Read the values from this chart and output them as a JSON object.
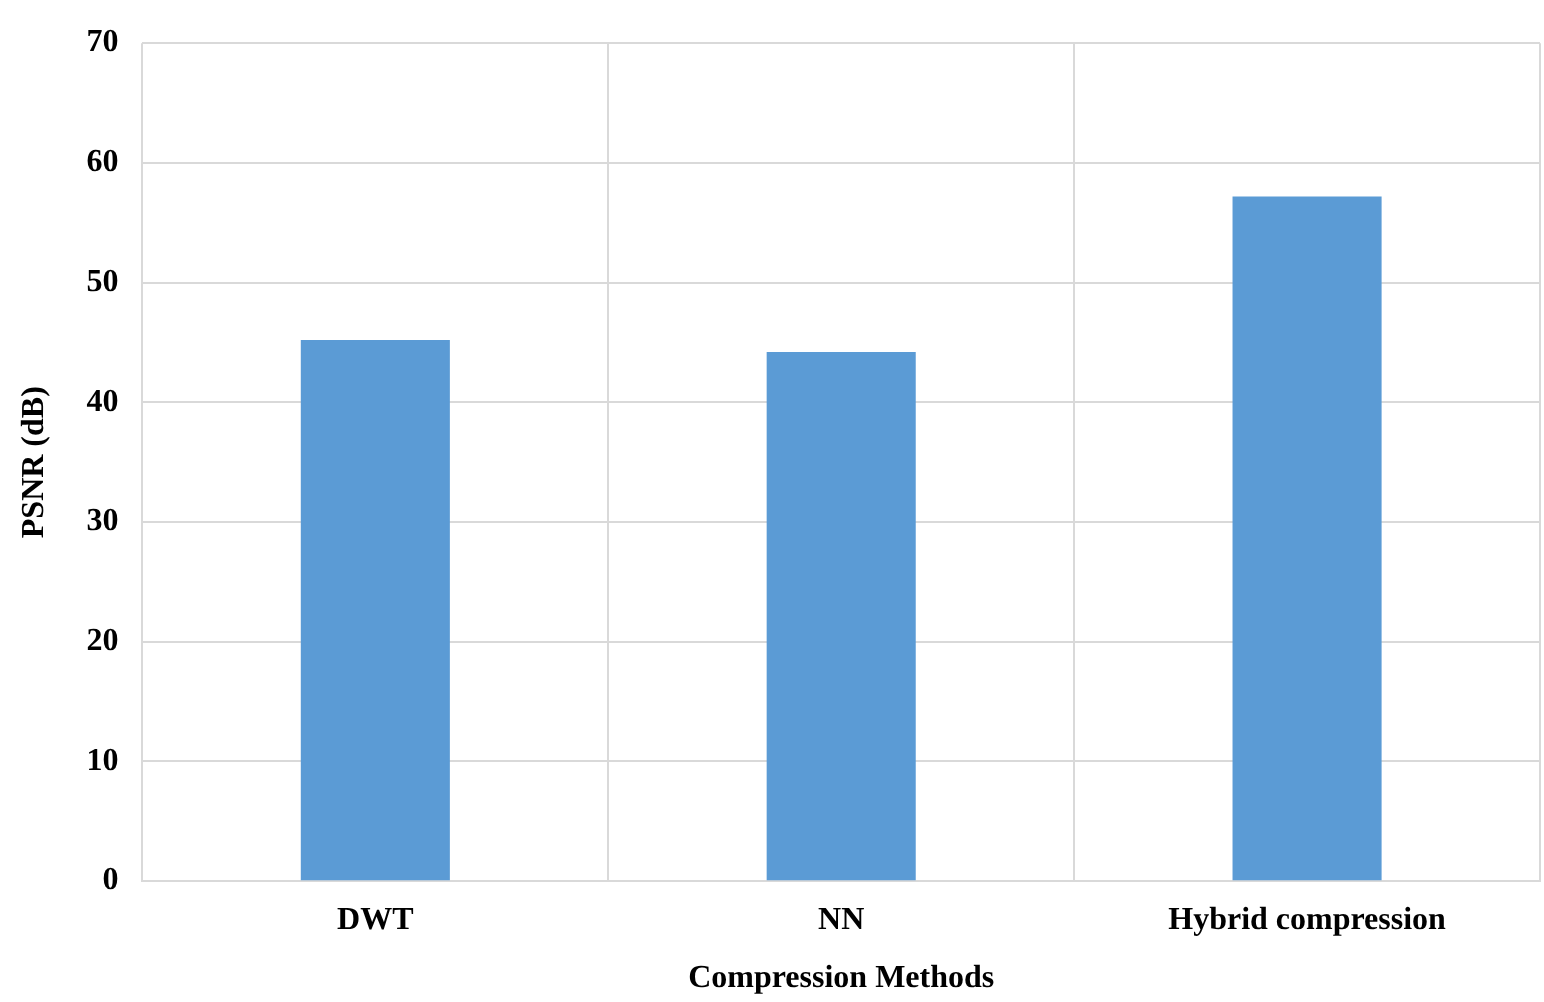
{
  "chart_data": {
    "type": "bar",
    "xlabel": "Compression Methods",
    "ylabel": "PSNR (dB)",
    "categories": [
      "DWT",
      "NN",
      "Hybrid compression"
    ],
    "values": [
      45.2,
      44.2,
      57.2
    ],
    "color": "#5b9bd5",
    "ylim": [
      0,
      70
    ],
    "yticks": [
      0,
      10,
      20,
      30,
      40,
      50,
      60,
      70
    ],
    "grid": true
  }
}
